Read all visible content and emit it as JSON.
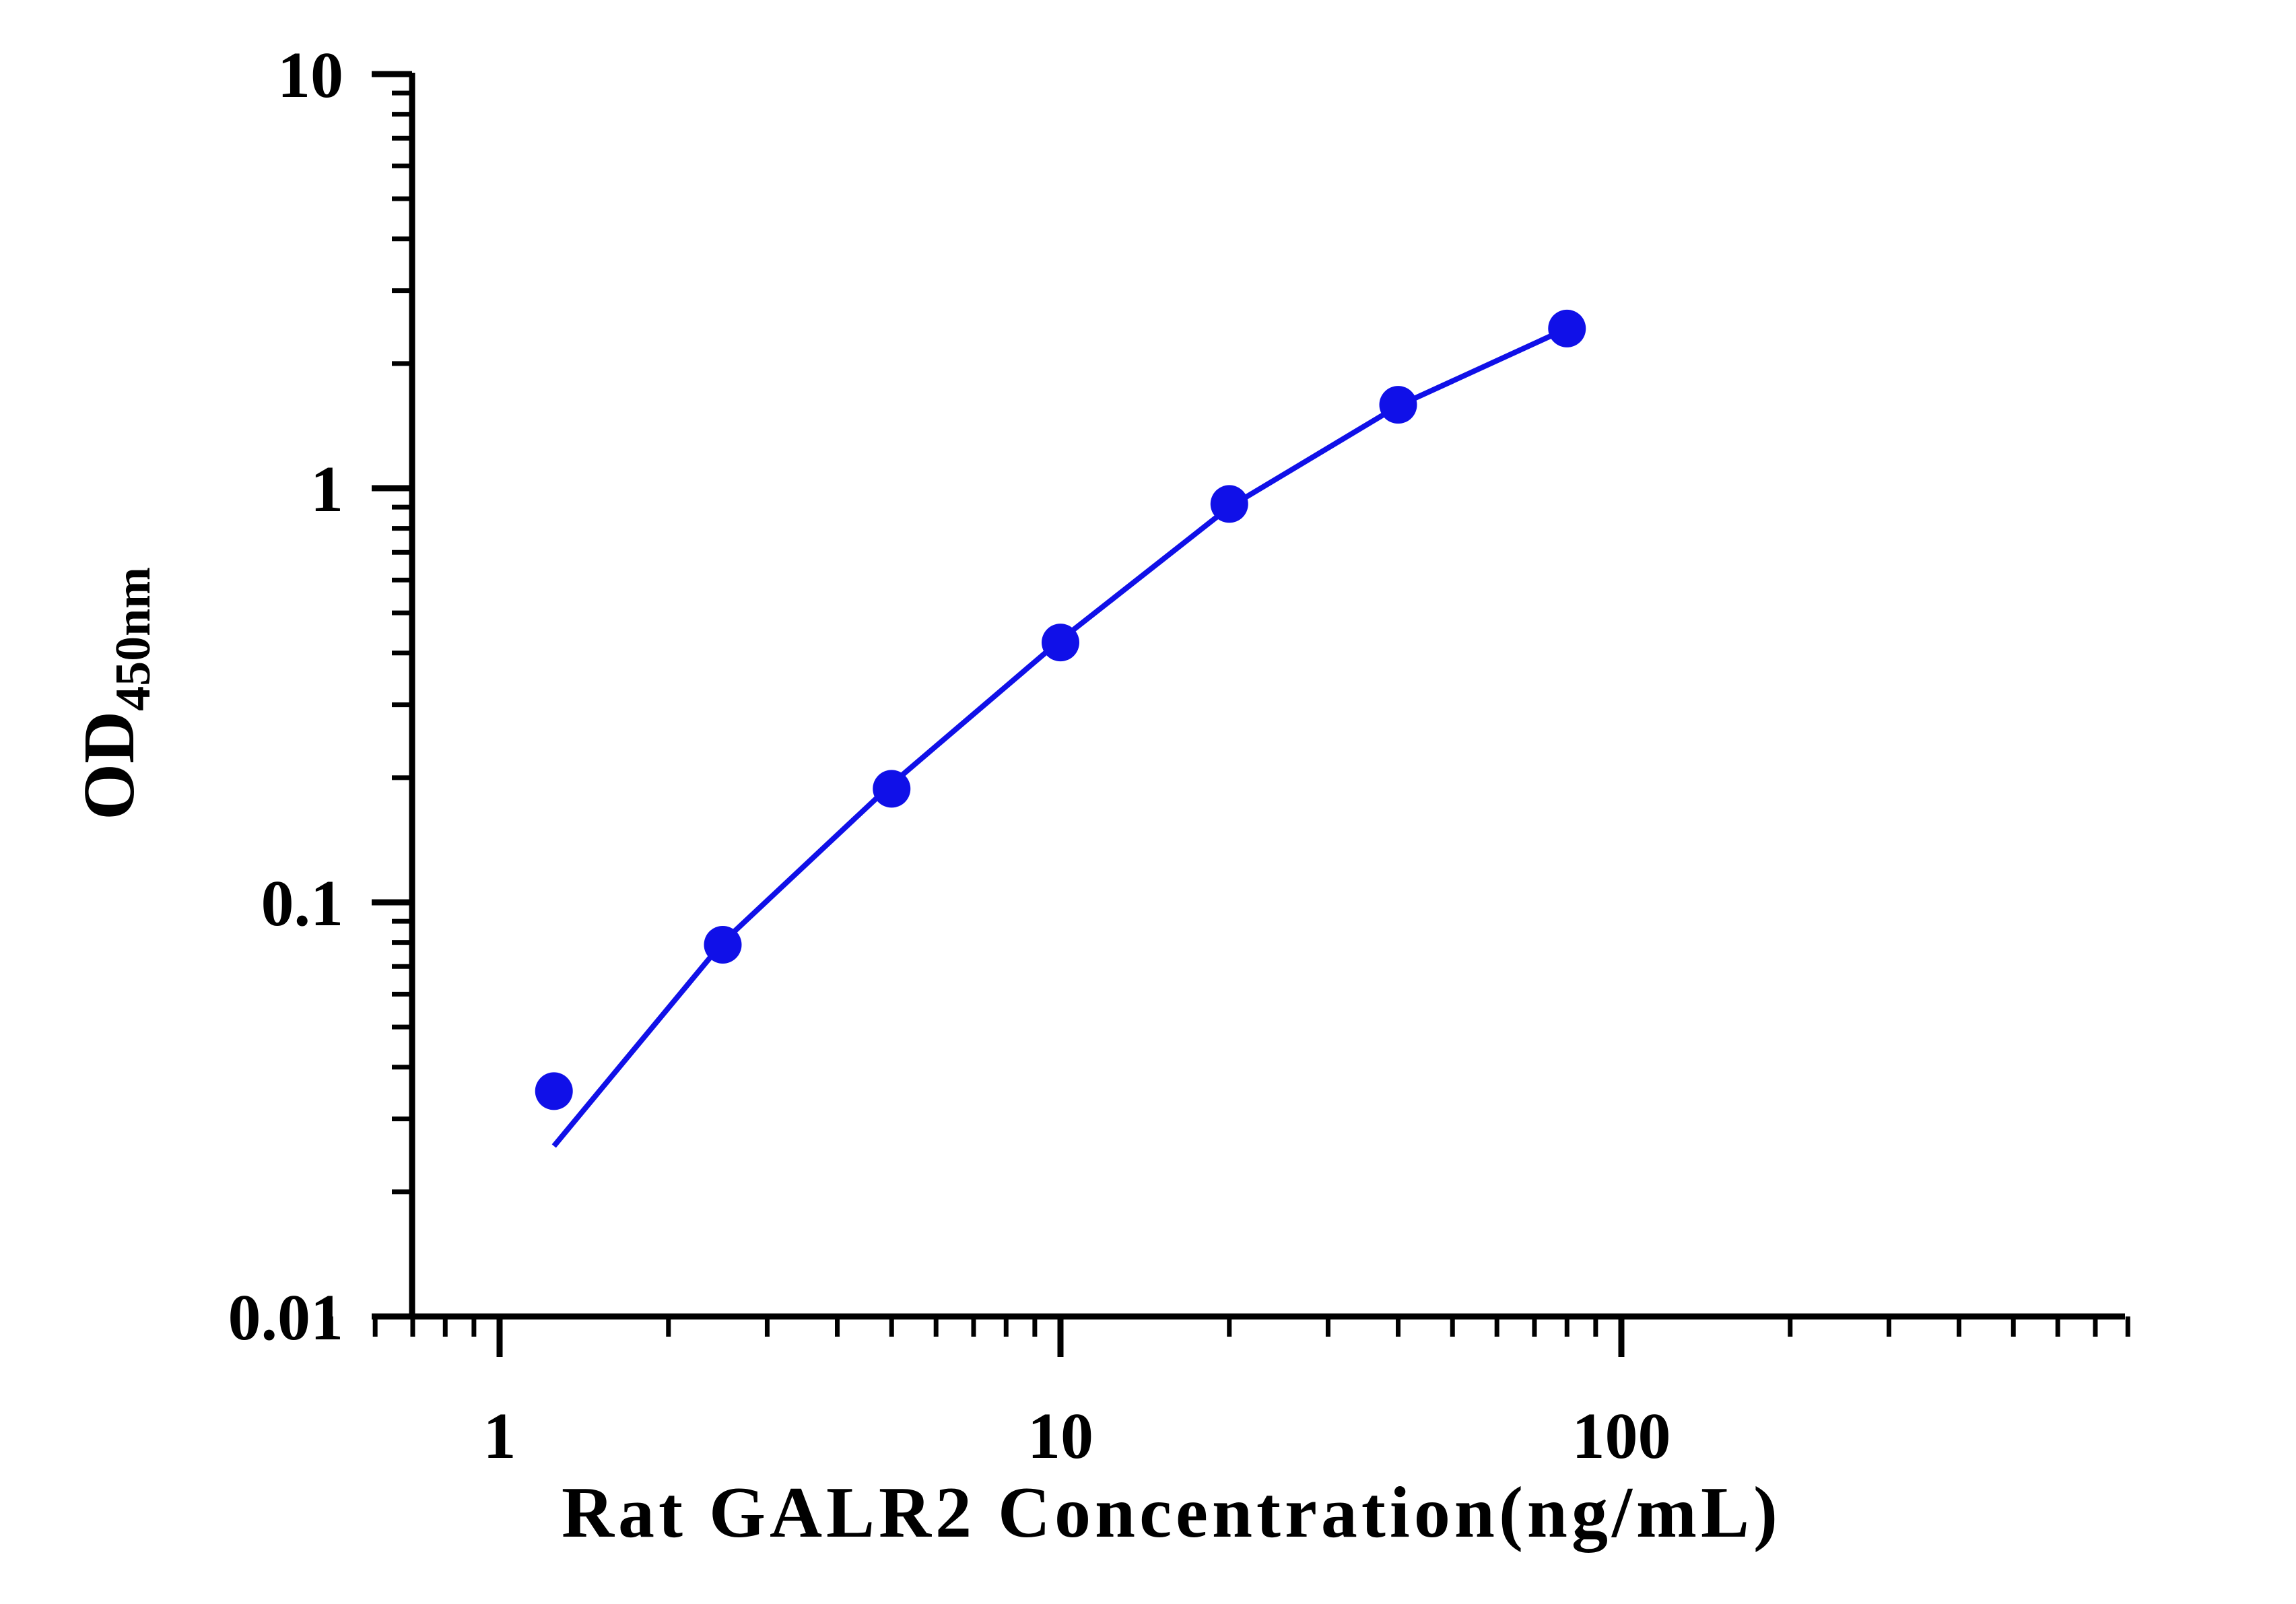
{
  "chart_data": {
    "type": "scatter",
    "xlabel": "Rat GALR2 Concentration(ng/mL)",
    "ylabel": "OD",
    "ylabel_subscript": "450nm",
    "x_scale": "log",
    "y_scale": "log",
    "xlim": [
      0.5,
      800
    ],
    "ylim": [
      0.01,
      10
    ],
    "x_ticks": [
      {
        "value": 1,
        "label": "1"
      },
      {
        "value": 10,
        "label": "10"
      },
      {
        "value": 100,
        "label": "100"
      }
    ],
    "y_ticks": [
      {
        "value": 0.01,
        "label": "0.01"
      },
      {
        "value": 0.1,
        "label": "0.1"
      },
      {
        "value": 1,
        "label": "1"
      },
      {
        "value": 10,
        "label": "10"
      }
    ],
    "grid": false,
    "series": [
      {
        "points": [
          {
            "x": 1.25,
            "y": 0.035
          },
          {
            "x": 2.5,
            "y": 0.079
          },
          {
            "x": 5,
            "y": 0.188
          },
          {
            "x": 10,
            "y": 0.424
          },
          {
            "x": 20,
            "y": 0.916
          },
          {
            "x": 40,
            "y": 1.59
          },
          {
            "x": 80,
            "y": 2.43
          }
        ],
        "fit_curve": [
          {
            "x": 1.25,
            "y": 0.0258
          },
          {
            "x": 2.5,
            "y": 0.0801
          },
          {
            "x": 5,
            "y": 0.193
          },
          {
            "x": 10,
            "y": 0.43
          },
          {
            "x": 20,
            "y": 0.9
          },
          {
            "x": 40,
            "y": 1.58
          },
          {
            "x": 80,
            "y": 2.43
          }
        ],
        "color": "#1010e8"
      }
    ]
  }
}
